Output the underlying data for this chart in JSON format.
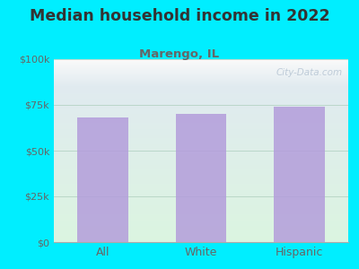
{
  "title": "Median household income in 2022",
  "subtitle": "Marengo, IL",
  "categories": [
    "All",
    "White",
    "Hispanic"
  ],
  "values": [
    68000,
    70000,
    74000
  ],
  "bar_color": "#b39ddb",
  "background_outer": "#00eeff",
  "title_color": "#333333",
  "subtitle_color": "#666666",
  "tick_color": "#666666",
  "yticks": [
    0,
    25000,
    50000,
    75000,
    100000
  ],
  "ytick_labels": [
    "$0",
    "$25k",
    "$50k",
    "$75k",
    "$100k"
  ],
  "ylim": [
    0,
    100000
  ],
  "watermark": "City-Data.com",
  "title_fontsize": 12.5,
  "subtitle_fontsize": 9.5,
  "tick_fontsize": 8,
  "xlabel_fontsize": 9
}
